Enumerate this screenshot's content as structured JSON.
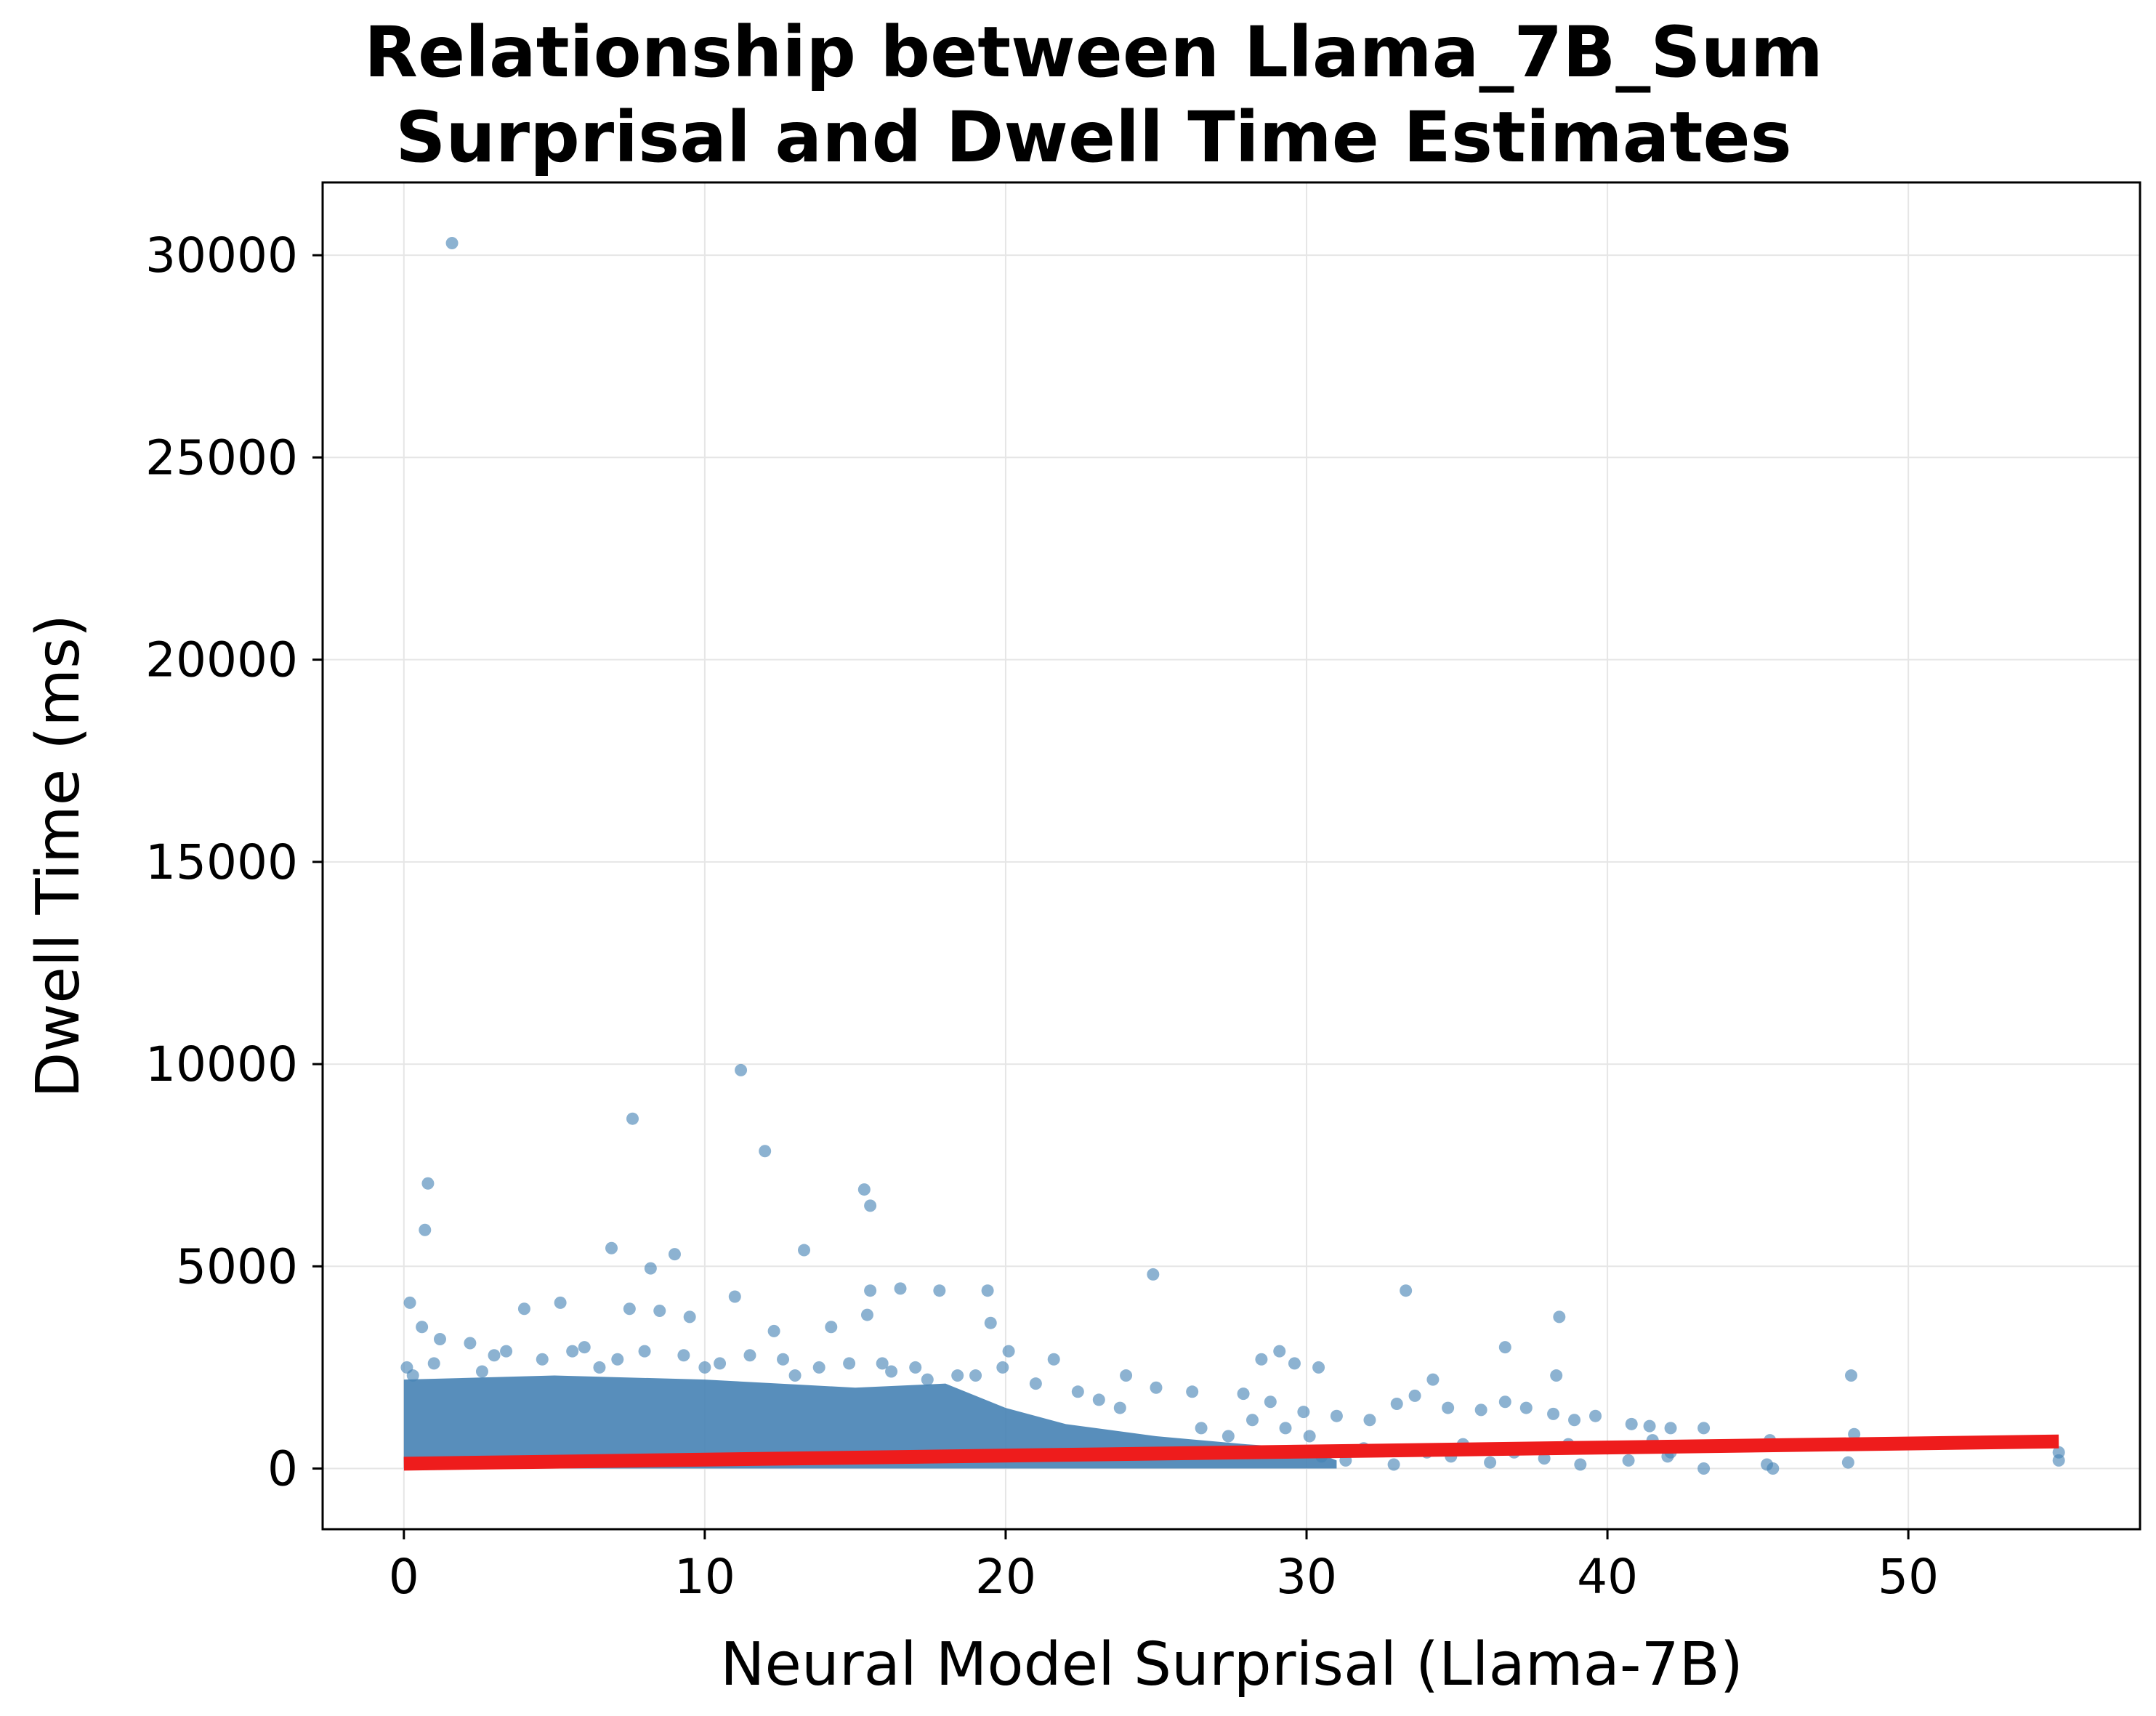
{
  "chart_data": {
    "type": "scatter",
    "title_lines": [
      "Relationship between Llama_7B_Sum",
      "Surprisal and Dwell Time Estimates"
    ],
    "xlabel": "Neural Model Surprisal (Llama-7B)",
    "ylabel": "Dwell Time (ms)",
    "xlim": [
      -2.7,
      57.7
    ],
    "ylim": [
      -1500,
      31800
    ],
    "xticks": [
      0,
      10,
      20,
      30,
      40,
      50
    ],
    "yticks": [
      0,
      5000,
      10000,
      15000,
      20000,
      25000,
      30000
    ],
    "grid": true,
    "colors": {
      "points": "#4682b4",
      "regression": "#ee1c1c",
      "grid": "#e6e6e6"
    },
    "regression_line": {
      "x": [
        0,
        55
      ],
      "y": [
        120,
        670
      ]
    },
    "dense_band": [
      {
        "x": 0,
        "y": 2200
      },
      {
        "x": 5,
        "y": 2300
      },
      {
        "x": 10,
        "y": 2200
      },
      {
        "x": 15,
        "y": 2000
      },
      {
        "x": 18,
        "y": 2100
      },
      {
        "x": 20,
        "y": 1500
      },
      {
        "x": 22,
        "y": 1100
      },
      {
        "x": 25,
        "y": 800
      },
      {
        "x": 28,
        "y": 600
      },
      {
        "x": 30,
        "y": 500
      },
      {
        "x": 31,
        "y": 200
      }
    ],
    "points": [
      [
        1.6,
        30300
      ],
      [
        11.2,
        9850
      ],
      [
        7.6,
        8650
      ],
      [
        12.0,
        7850
      ],
      [
        0.8,
        7050
      ],
      [
        15.3,
        6900
      ],
      [
        15.5,
        6500
      ],
      [
        0.7,
        5900
      ],
      [
        6.9,
        5450
      ],
      [
        13.3,
        5400
      ],
      [
        9.0,
        5300
      ],
      [
        8.2,
        4950
      ],
      [
        24.9,
        4800
      ],
      [
        0.2,
        4100
      ],
      [
        5.2,
        4100
      ],
      [
        11.0,
        4250
      ],
      [
        15.5,
        4400
      ],
      [
        16.5,
        4450
      ],
      [
        17.8,
        4400
      ],
      [
        19.4,
        4400
      ],
      [
        33.3,
        4400
      ],
      [
        4.0,
        3950
      ],
      [
        7.5,
        3950
      ],
      [
        8.5,
        3900
      ],
      [
        9.5,
        3750
      ],
      [
        38.4,
        3750
      ],
      [
        12.3,
        3400
      ],
      [
        14.2,
        3500
      ],
      [
        15.4,
        3800
      ],
      [
        19.5,
        3600
      ],
      [
        0.6,
        3500
      ],
      [
        36.6,
        3000
      ],
      [
        1.2,
        3200
      ],
      [
        3.0,
        2800
      ],
      [
        6.0,
        3000
      ],
      [
        20.1,
        2900
      ],
      [
        21.6,
        2700
      ],
      [
        24.0,
        2300
      ],
      [
        28.5,
        2700
      ],
      [
        29.1,
        2900
      ],
      [
        29.6,
        2600
      ],
      [
        30.4,
        2500
      ],
      [
        34.2,
        2200
      ],
      [
        38.3,
        2300
      ],
      [
        48.1,
        2300
      ],
      [
        25.0,
        2000
      ],
      [
        26.2,
        1900
      ],
      [
        27.9,
        1850
      ],
      [
        28.8,
        1650
      ],
      [
        29.9,
        1400
      ],
      [
        31.0,
        1300
      ],
      [
        32.1,
        1200
      ],
      [
        33.0,
        1600
      ],
      [
        33.6,
        1800
      ],
      [
        34.7,
        1500
      ],
      [
        35.8,
        1450
      ],
      [
        36.6,
        1650
      ],
      [
        37.3,
        1500
      ],
      [
        38.2,
        1350
      ],
      [
        38.9,
        1200
      ],
      [
        39.6,
        1300
      ],
      [
        40.8,
        1100
      ],
      [
        41.4,
        1050
      ],
      [
        42.1,
        1000
      ],
      [
        43.2,
        1000
      ],
      [
        45.4,
        700
      ],
      [
        48.2,
        850
      ],
      [
        45.3,
        100
      ],
      [
        48.0,
        150
      ],
      [
        55.0,
        200
      ],
      [
        55.0,
        400
      ],
      [
        43.2,
        0
      ],
      [
        45.5,
        0
      ],
      [
        31.3,
        200
      ],
      [
        32.9,
        100
      ],
      [
        34.8,
        300
      ],
      [
        36.1,
        150
      ],
      [
        37.9,
        250
      ],
      [
        39.1,
        100
      ],
      [
        40.7,
        200
      ],
      [
        42.0,
        300
      ],
      [
        30.5,
        300
      ],
      [
        31.9,
        500
      ],
      [
        34.0,
        400
      ],
      [
        35.2,
        600
      ],
      [
        36.9,
        400
      ],
      [
        38.7,
        600
      ],
      [
        40.0,
        500
      ],
      [
        41.5,
        700
      ],
      [
        42.1,
        400
      ],
      [
        26.5,
        1000
      ],
      [
        27.4,
        800
      ],
      [
        28.2,
        1200
      ],
      [
        29.3,
        1000
      ],
      [
        30.1,
        800
      ],
      [
        23.1,
        1700
      ],
      [
        22.4,
        1900
      ],
      [
        21.0,
        2100
      ],
      [
        19.9,
        2500
      ],
      [
        18.4,
        2300
      ],
      [
        17.0,
        2500
      ],
      [
        16.2,
        2400
      ],
      [
        14.8,
        2600
      ],
      [
        13.8,
        2500
      ],
      [
        12.6,
        2700
      ],
      [
        11.5,
        2800
      ],
      [
        10.5,
        2600
      ],
      [
        9.3,
        2800
      ],
      [
        8.0,
        2900
      ],
      [
        7.1,
        2700
      ],
      [
        5.6,
        2900
      ],
      [
        4.6,
        2700
      ],
      [
        3.4,
        2900
      ],
      [
        2.2,
        3100
      ],
      [
        1.0,
        2600
      ],
      [
        0.1,
        2500
      ],
      [
        0.3,
        2300
      ],
      [
        2.6,
        2400
      ],
      [
        6.5,
        2500
      ],
      [
        10.0,
        2500
      ],
      [
        13.0,
        2300
      ],
      [
        15.9,
        2600
      ],
      [
        17.4,
        2200
      ],
      [
        19.0,
        2300
      ],
      [
        23.8,
        1500
      ]
    ]
  }
}
